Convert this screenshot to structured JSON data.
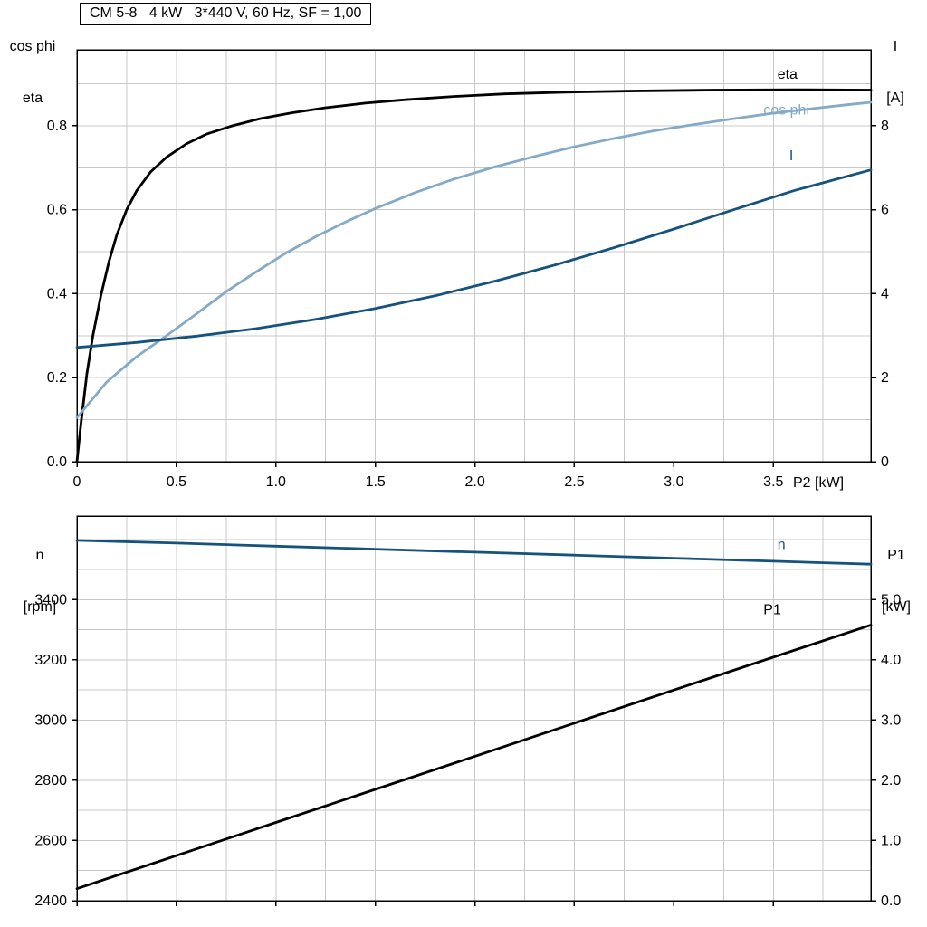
{
  "labels": {
    "title": "CM 5-8   4 kW   3*440 V, 60 Hz, SF = 1,00",
    "top_left_line1": "cos phi",
    "top_left_line2": "eta",
    "top_right_line1": "I",
    "top_right_line2": "[A]",
    "x_axis_top": "P2 [kW]",
    "bottom_left_line1": "n",
    "bottom_left_line2": "[rpm]",
    "bottom_right_line1": "P1",
    "bottom_right_line2": "[kW]"
  },
  "colors": {
    "black": "#000000",
    "dark_blue": "#15537e",
    "light_blue": "#84aac8",
    "grid": "#c8c8c8",
    "frame": "#000000"
  },
  "chart_data": [
    {
      "type": "line",
      "title": "CM 5-8   4 kW   3*440 V, 60 Hz, SF = 1,00",
      "xlabel": "P2 [kW]",
      "ylabel_left": "cos phi / eta",
      "ylabel_right": "I [A]",
      "xlim": [
        0,
        3.99
      ],
      "ylim_left": [
        0,
        0.981
      ],
      "ylim_right": [
        0,
        9.81
      ],
      "grid": {
        "x_step": 0.25,
        "left_step": 0.1
      },
      "x_ticks": [
        0,
        0.5,
        1.0,
        1.5,
        2.0,
        2.5,
        3.0,
        3.5
      ],
      "x_tick_labels": [
        "0",
        "0.5",
        "1.0",
        "1.5",
        "2.0",
        "2.5",
        "3.0",
        "3.5"
      ],
      "left_ticks": [
        0.0,
        0.2,
        0.4,
        0.6,
        0.8
      ],
      "left_tick_labels": [
        "0.0",
        "0.2",
        "0.4",
        "0.6",
        "0.8"
      ],
      "right_ticks": [
        0,
        2,
        4,
        6,
        8
      ],
      "right_tick_labels": [
        "0",
        "2",
        "4",
        "6",
        "8"
      ],
      "series": [
        {
          "name": "eta",
          "axis": "left",
          "color": "#000000",
          "label_pos": [
            3.52,
            0.912
          ],
          "points": [
            [
              0,
              0
            ],
            [
              0.02,
              0.09
            ],
            [
              0.05,
              0.21
            ],
            [
              0.08,
              0.3
            ],
            [
              0.12,
              0.395
            ],
            [
              0.16,
              0.475
            ],
            [
              0.2,
              0.54
            ],
            [
              0.25,
              0.6
            ],
            [
              0.3,
              0.645
            ],
            [
              0.37,
              0.69
            ],
            [
              0.45,
              0.725
            ],
            [
              0.55,
              0.757
            ],
            [
              0.65,
              0.78
            ],
            [
              0.78,
              0.8
            ],
            [
              0.92,
              0.817
            ],
            [
              1.08,
              0.831
            ],
            [
              1.25,
              0.843
            ],
            [
              1.45,
              0.854
            ],
            [
              1.65,
              0.862
            ],
            [
              1.9,
              0.87
            ],
            [
              2.15,
              0.876
            ],
            [
              2.45,
              0.88
            ],
            [
              2.8,
              0.883
            ],
            [
              3.2,
              0.885
            ],
            [
              3.6,
              0.886
            ],
            [
              3.99,
              0.885
            ]
          ]
        },
        {
          "name": "cos phi",
          "axis": "left",
          "color": "#84aac8",
          "label_pos": [
            3.45,
            0.827
          ],
          "points": [
            [
              0,
              0.105
            ],
            [
              0.15,
              0.19
            ],
            [
              0.3,
              0.25
            ],
            [
              0.45,
              0.3
            ],
            [
              0.6,
              0.352
            ],
            [
              0.75,
              0.405
            ],
            [
              0.9,
              0.452
            ],
            [
              1.05,
              0.497
            ],
            [
              1.2,
              0.536
            ],
            [
              1.35,
              0.571
            ],
            [
              1.5,
              0.603
            ],
            [
              1.7,
              0.641
            ],
            [
              1.9,
              0.674
            ],
            [
              2.1,
              0.702
            ],
            [
              2.3,
              0.727
            ],
            [
              2.5,
              0.75
            ],
            [
              2.7,
              0.77
            ],
            [
              2.9,
              0.788
            ],
            [
              3.1,
              0.803
            ],
            [
              3.3,
              0.817
            ],
            [
              3.5,
              0.83
            ],
            [
              3.7,
              0.841
            ],
            [
              3.85,
              0.849
            ],
            [
              3.99,
              0.856
            ]
          ]
        },
        {
          "name": "I",
          "axis": "right",
          "color": "#15537e",
          "label_pos": [
            3.58,
            7.18
          ],
          "points": [
            [
              0,
              2.72
            ],
            [
              0.3,
              2.84
            ],
            [
              0.6,
              2.99
            ],
            [
              0.9,
              3.17
            ],
            [
              1.2,
              3.39
            ],
            [
              1.5,
              3.65
            ],
            [
              1.8,
              3.95
            ],
            [
              2.1,
              4.3
            ],
            [
              2.4,
              4.68
            ],
            [
              2.7,
              5.1
            ],
            [
              3.0,
              5.54
            ],
            [
              3.3,
              6.0
            ],
            [
              3.6,
              6.45
            ],
            [
              3.99,
              6.95
            ]
          ]
        }
      ]
    },
    {
      "type": "line",
      "title": "",
      "xlabel": "",
      "ylabel_left": "n [rpm]",
      "ylabel_right": "P1 [kW]",
      "xlim": [
        0,
        3.99
      ],
      "ylim_left": [
        2400,
        3678
      ],
      "ylim_right": [
        0,
        6.39
      ],
      "grid": {
        "x_step": 0.25,
        "left_step": 100
      },
      "x_ticks": [
        0,
        0.5,
        1.0,
        1.5,
        2.0,
        2.5,
        3.0,
        3.5
      ],
      "x_tick_labels": [],
      "left_ticks": [
        2400,
        2600,
        2800,
        3000,
        3200,
        3400
      ],
      "left_tick_labels": [
        "2400",
        "2600",
        "2800",
        "3000",
        "3200",
        "3400"
      ],
      "right_ticks": [
        0.0,
        1.0,
        2.0,
        3.0,
        4.0,
        5.0
      ],
      "right_tick_labels": [
        "0.0",
        "1.0",
        "2.0",
        "3.0",
        "4.0",
        "5.0"
      ],
      "series": [
        {
          "name": "n",
          "axis": "left",
          "color": "#15537e",
          "label_pos": [
            3.52,
            3568
          ],
          "points": [
            [
              0,
              3597
            ],
            [
              0.5,
              3588
            ],
            [
              1.0,
              3578
            ],
            [
              1.5,
              3568
            ],
            [
              2.0,
              3558
            ],
            [
              2.5,
              3548
            ],
            [
              3.0,
              3538
            ],
            [
              3.5,
              3528
            ],
            [
              3.99,
              3518
            ]
          ]
        },
        {
          "name": "P1",
          "axis": "right",
          "color": "#000000",
          "label_pos": [
            3.45,
            4.76
          ],
          "points": [
            [
              0,
              0.2
            ],
            [
              1.0,
              1.3
            ],
            [
              2.0,
              2.4
            ],
            [
              3.0,
              3.5
            ],
            [
              3.99,
              4.58
            ]
          ]
        }
      ]
    }
  ]
}
